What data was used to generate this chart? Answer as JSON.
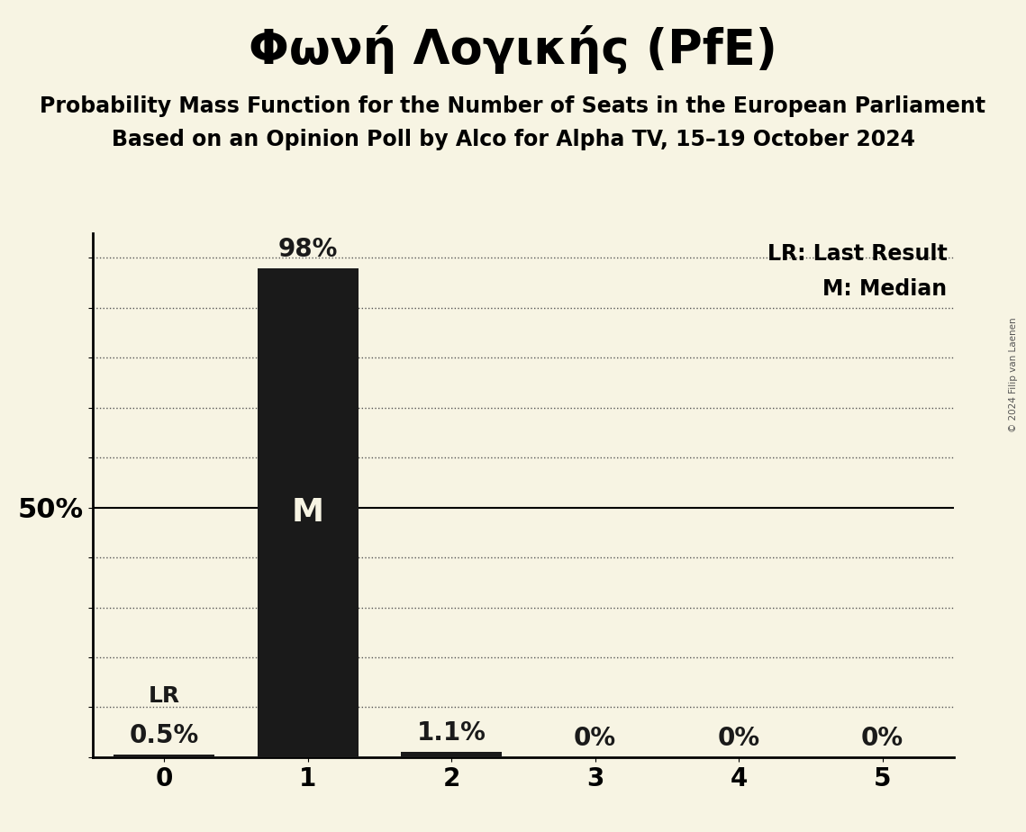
{
  "title": "Φωνή Λογικής (PfE)",
  "subtitle1": "Probability Mass Function for the Number of Seats in the European Parliament",
  "subtitle2": "Based on an Opinion Poll by Alco for Alpha TV, 15–19 October 2024",
  "copyright": "© 2024 Filip van Laenen",
  "seats": [
    0,
    1,
    2,
    3,
    4,
    5
  ],
  "probabilities": [
    0.005,
    0.98,
    0.011,
    0.0,
    0.0,
    0.0
  ],
  "bar_labels": [
    "0.5%",
    "98%",
    "1.1%",
    "0%",
    "0%",
    "0%"
  ],
  "bar_color": "#1a1a1a",
  "background_color": "#f7f4e3",
  "median_seat": 1,
  "last_result_seat": 0,
  "legend_lr": "LR: Last Result",
  "legend_m": "M: Median",
  "ylabel_50": "50%",
  "ylim": [
    0,
    1.05
  ],
  "yticks": [
    0.0,
    0.1,
    0.2,
    0.3,
    0.4,
    0.5,
    0.6,
    0.7,
    0.8,
    0.9,
    1.0
  ],
  "dotted_gridlines_color": "#555555",
  "solid_50_color": "#000000",
  "bar_label_fontsize": 20,
  "bar_label_color_outside": "#1a1a1a",
  "bar_label_color_inside": "#f7f4e3",
  "median_label_fontsize": 26,
  "lr_label_fontsize": 18,
  "title_fontsize": 38,
  "subtitle_fontsize": 17,
  "axis_tick_fontsize": 20,
  "ylabel_fontsize": 22,
  "legend_fontsize": 17
}
